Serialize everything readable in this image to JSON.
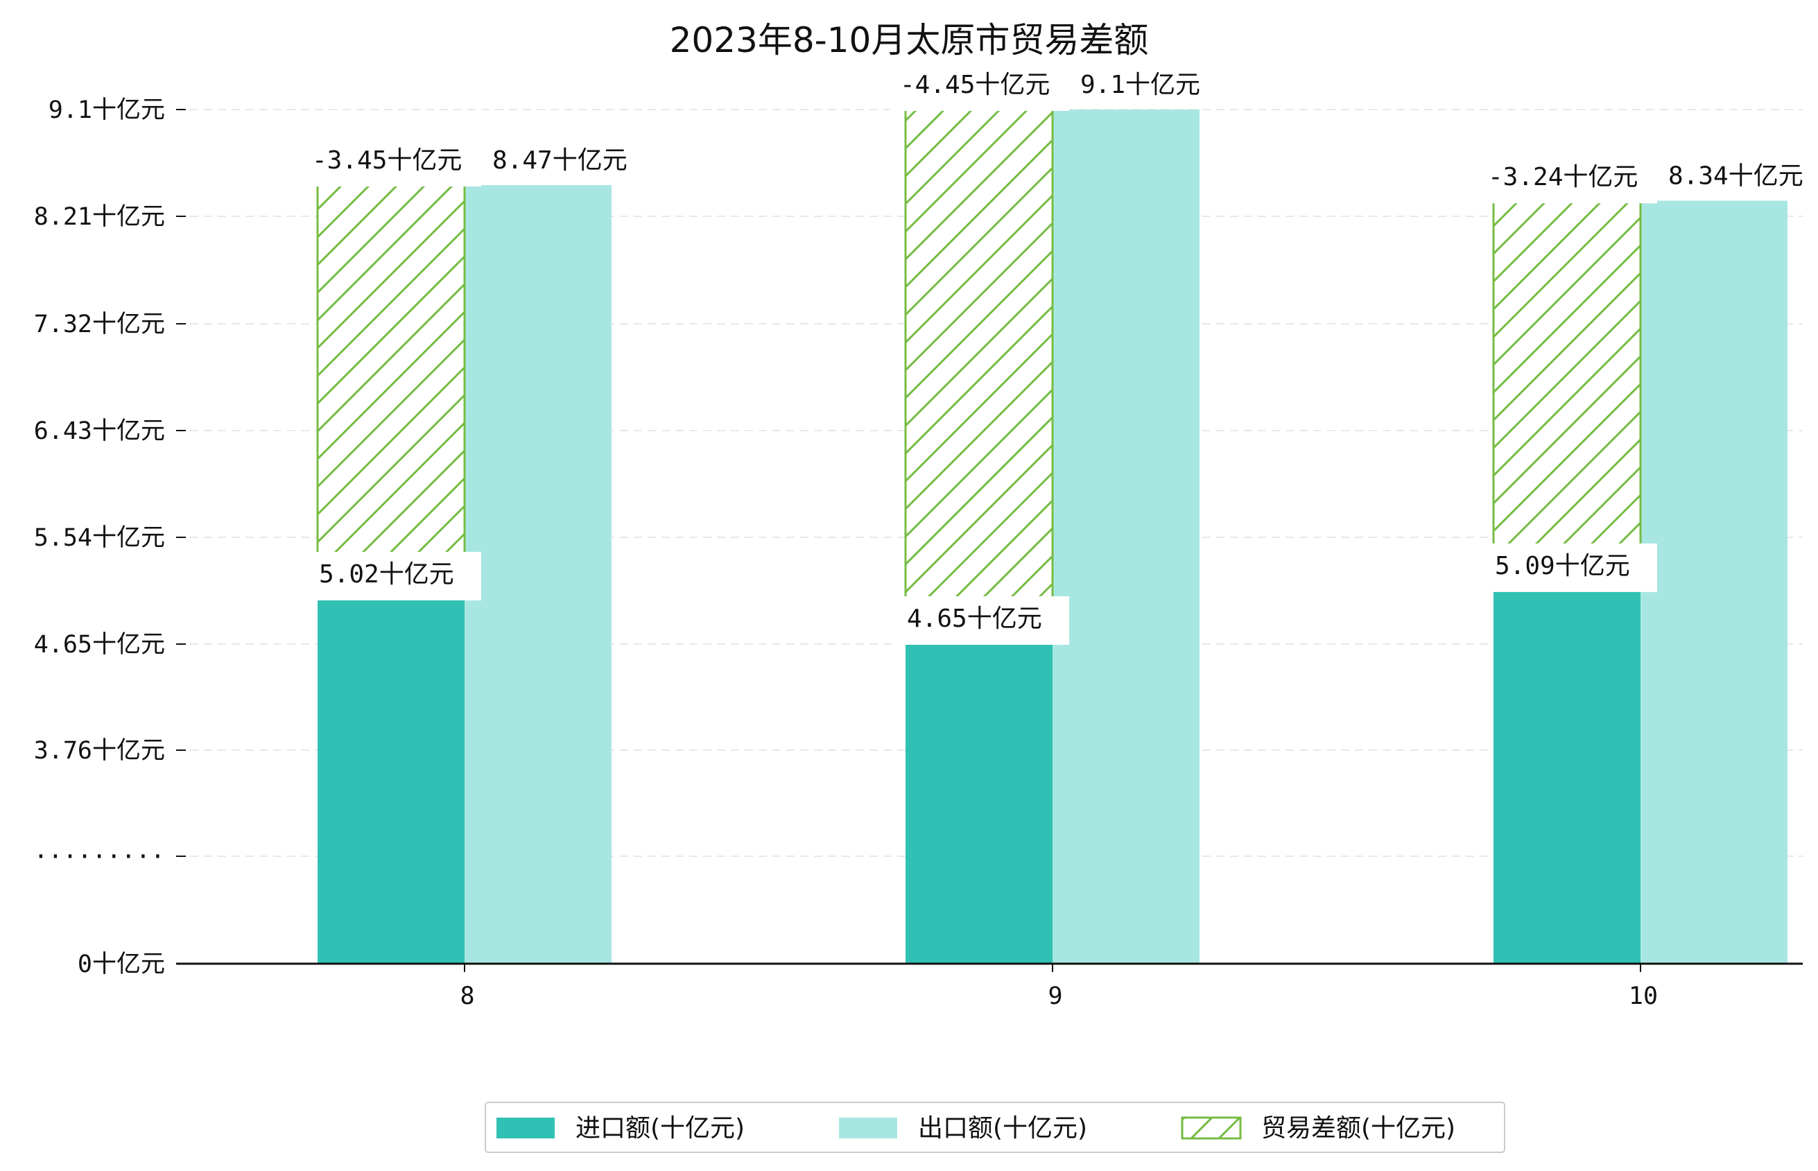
{
  "chart_data": {
    "type": "bar",
    "title": "2023年8-10月太原市贸易差额",
    "xlabel": "",
    "ylabel": "",
    "categories": [
      "8",
      "9",
      "10"
    ],
    "y_tick_labels": [
      "0十亿元",
      "·········",
      "3.76十亿元",
      "4.65十亿元",
      "5.54十亿元",
      "6.43十亿元",
      "7.32十亿元",
      "8.21十亿元",
      "9.1十亿元"
    ],
    "axis_break": true,
    "series": [
      {
        "name": "进口额(十亿元)",
        "values": [
          5.02,
          4.65,
          5.09
        ],
        "labels": [
          "5.02十亿元",
          "4.65十亿元",
          "5.09十亿元"
        ],
        "color": "#31c1b4"
      },
      {
        "name": "出口额(十亿元)",
        "values": [
          8.47,
          9.1,
          8.34
        ],
        "labels": [
          "8.47十亿元",
          "9.1十亿元",
          "8.34十亿元"
        ],
        "color": "#a8e7e1"
      },
      {
        "name": "贸易差额(十亿元)",
        "values": [
          -3.45,
          -4.45,
          -3.24
        ],
        "labels": [
          "-3.45十亿元",
          "-4.45十亿元",
          "-3.24十亿元"
        ],
        "color": "#76bc44",
        "style": "hatched, stacked on import"
      }
    ],
    "grid": "horizontal dashed",
    "legend_position": "bottom-center"
  }
}
